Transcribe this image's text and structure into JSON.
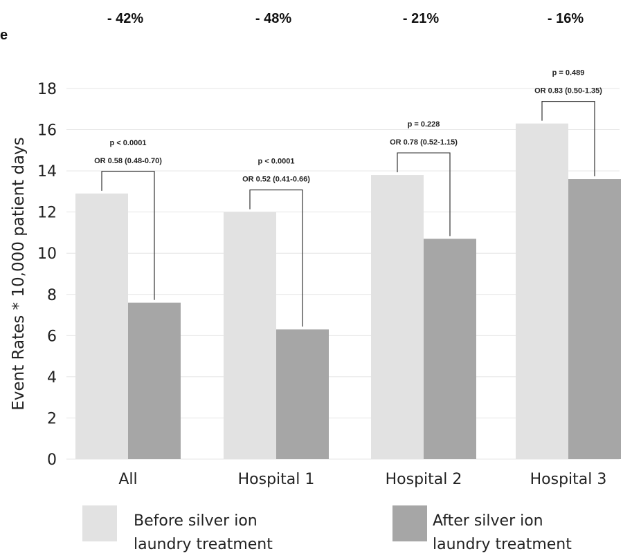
{
  "chart_data": {
    "type": "bar",
    "categories": [
      "All",
      "Hospital 1",
      "Hospital 2",
      "Hospital 3"
    ],
    "series": [
      {
        "name": "Before silver ion laundry treatment",
        "values": [
          12.9,
          12.0,
          13.8,
          16.3
        ],
        "color": "#e2e2e2"
      },
      {
        "name": "After silver ion laundry treatment",
        "values": [
          7.6,
          6.3,
          10.7,
          13.6
        ],
        "color": "#a6a6a6"
      }
    ],
    "title": "",
    "xlabel": "",
    "ylabel": "Event Rates * 10,000 patient days",
    "ylim": [
      0,
      18
    ],
    "yticks": [
      0,
      2,
      4,
      6,
      8,
      10,
      12,
      14,
      16,
      18
    ],
    "grid": true,
    "legend_position": "bottom",
    "percent_changes": [
      "- 42%",
      "- 48%",
      "- 21%",
      "- 16%"
    ],
    "annotations": [
      {
        "p": "p < 0.0001",
        "or": "OR 0.58 (0.48-0.70)"
      },
      {
        "p": "p < 0.0001",
        "or": "OR 0.52 (0.41-0.66)"
      },
      {
        "p": "p = 0.228",
        "or": "OR 0.78 (0.52-1.15)"
      },
      {
        "p": "p = 0.489",
        "or": "OR 0.83 (0.50-1.35)"
      }
    ],
    "stray_text": "e",
    "legend": [
      {
        "lines": [
          "Before silver ion",
          "laundry treatment"
        ]
      },
      {
        "lines": [
          "After silver ion",
          "laundry treatment"
        ]
      }
    ]
  }
}
